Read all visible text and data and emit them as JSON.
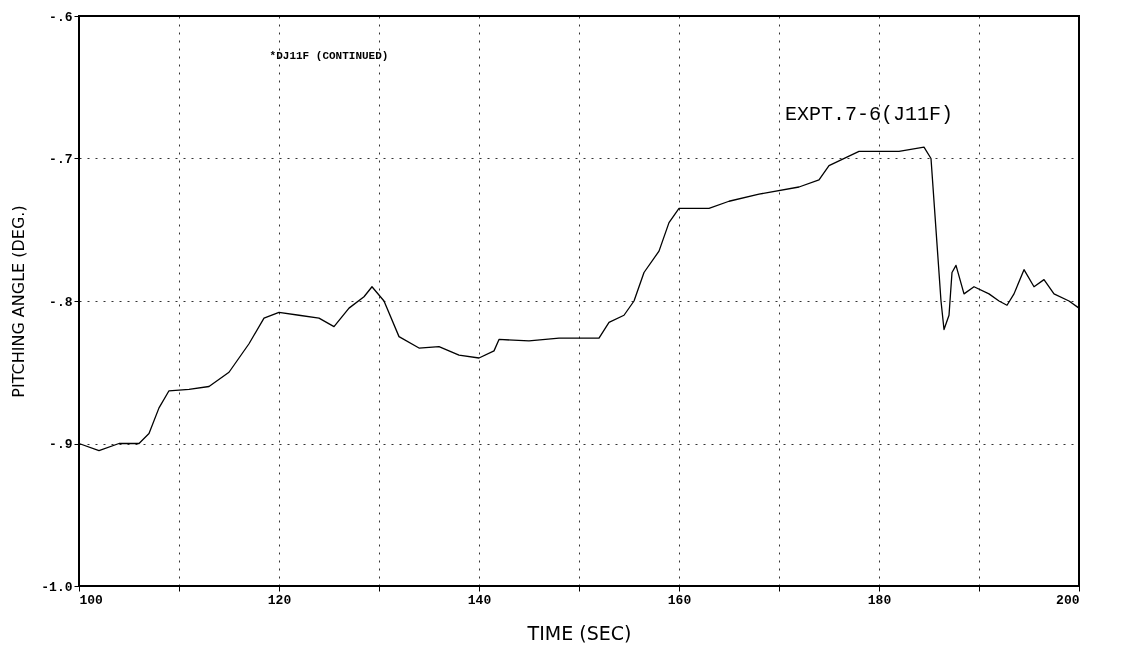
{
  "chart_data": {
    "type": "line",
    "xlabel": "TIME (SEC)",
    "ylabel": "PITCHING ANGLE (DEG.)",
    "annotations": [
      "*DJ11F (CONTINUED)",
      "EXPT.7-6(J11F)"
    ],
    "x": [
      100,
      102,
      104,
      106,
      107,
      108,
      109,
      111,
      113,
      115,
      117,
      118.5,
      120,
      122,
      124,
      125.5,
      127,
      128.5,
      129.3,
      130.5,
      132,
      134,
      136,
      138,
      140,
      141.5,
      142,
      145,
      148,
      150,
      152,
      153,
      154.5,
      155.5,
      156.5,
      158,
      159,
      160,
      163,
      165,
      168,
      172,
      174,
      175,
      178,
      182,
      184.5,
      185.2,
      186.2,
      186.5,
      187,
      187.3,
      187.7,
      188.5,
      189.5,
      191,
      192,
      192.8,
      193.5,
      194.5,
      195.5,
      196.5,
      197.5,
      199,
      200
    ],
    "series": [
      {
        "color": "#000000",
        "values": [
          -0.9,
          -0.905,
          -0.9,
          -0.9,
          -0.893,
          -0.875,
          -0.863,
          -0.862,
          -0.86,
          -0.85,
          -0.83,
          -0.812,
          -0.808,
          -0.81,
          -0.812,
          -0.818,
          -0.805,
          -0.797,
          -0.79,
          -0.8,
          -0.825,
          -0.833,
          -0.832,
          -0.838,
          -0.84,
          -0.835,
          -0.827,
          -0.828,
          -0.826,
          -0.826,
          -0.826,
          -0.815,
          -0.81,
          -0.8,
          -0.78,
          -0.765,
          -0.745,
          -0.735,
          -0.735,
          -0.73,
          -0.725,
          -0.72,
          -0.715,
          -0.705,
          -0.695,
          -0.695,
          -0.692,
          -0.7,
          -0.8,
          -0.82,
          -0.81,
          -0.78,
          -0.775,
          -0.795,
          -0.79,
          -0.795,
          -0.8,
          -0.803,
          -0.795,
          -0.778,
          -0.79,
          -0.785,
          -0.795,
          -0.8,
          -0.805
        ]
      }
    ],
    "xlim": [
      100,
      200
    ],
    "xticks": [
      100,
      {
        "value": 110,
        "label": null
      },
      120,
      {
        "value": 130,
        "label": null
      },
      140,
      {
        "value": 150,
        "label": null
      },
      160,
      {
        "value": 170,
        "label": null
      },
      180,
      {
        "value": 190,
        "label": null
      },
      200
    ],
    "ylim": [
      -1.0,
      -0.6
    ],
    "yticks": [
      {
        "value": -1.0,
        "label": "-1.0"
      },
      {
        "value": -0.9,
        "label": "-.9"
      },
      {
        "value": -0.8,
        "label": "-.8"
      },
      {
        "value": -0.7,
        "label": "-.7"
      },
      {
        "value": -0.6,
        "label": "-.6"
      }
    ],
    "grid": true,
    "legend": false,
    "marker": "none",
    "line_style": "solid"
  }
}
